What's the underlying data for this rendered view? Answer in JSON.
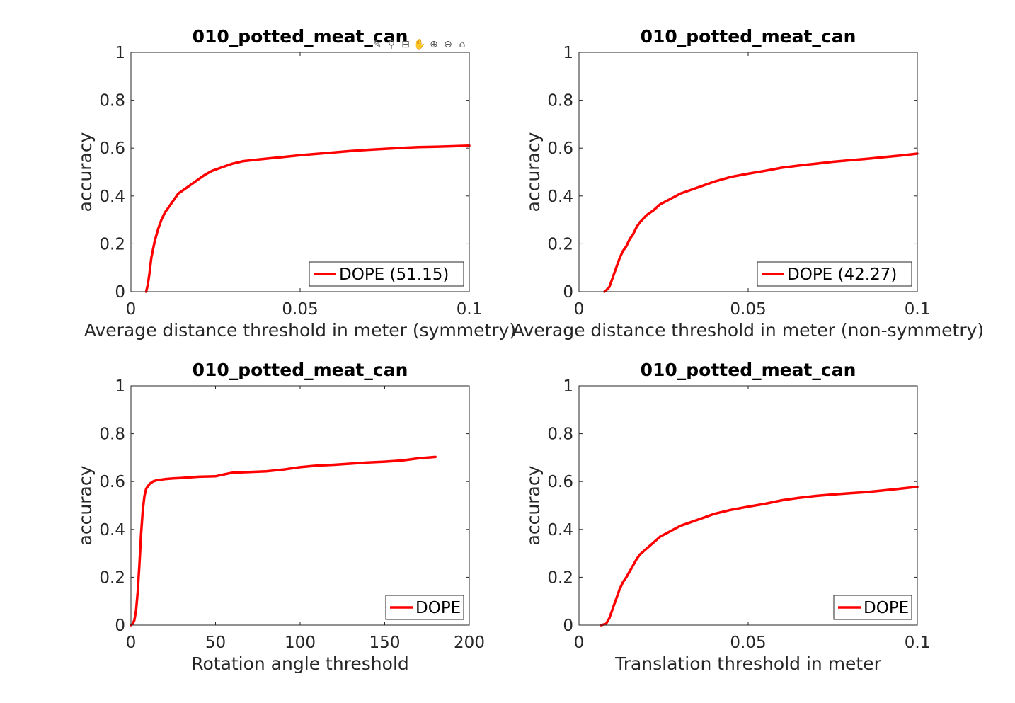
{
  "toolbar": {
    "icons": [
      "brush-icon",
      "datatip-icon",
      "legend-icon",
      "pan-icon",
      "zoom-in-icon",
      "zoom-out-icon",
      "home-icon"
    ],
    "glyphs": [
      "✎",
      "⚲",
      "⊟",
      "✋",
      "⊕",
      "⊖",
      "⌂"
    ]
  },
  "chart_data": [
    {
      "type": "line",
      "title": "010_potted_meat_can",
      "xlabel": "Average distance threshold in meter (symmetry)",
      "ylabel": "accuracy",
      "xlim": [
        0,
        0.1
      ],
      "ylim": [
        0,
        1
      ],
      "xticks": [
        0,
        0.05,
        0.1
      ],
      "xtick_labels": [
        "0",
        "0.05",
        "0.1"
      ],
      "yticks": [
        0,
        0.2,
        0.4,
        0.6,
        0.8,
        1
      ],
      "ytick_labels": [
        "0",
        "0.2",
        "0.4",
        "0.6",
        "0.8",
        "1"
      ],
      "legend_position": "bottom-right",
      "series": [
        {
          "name": "DOPE (51.15)",
          "color": "#ff0000",
          "x": [
            0.0045,
            0.005,
            0.0055,
            0.006,
            0.007,
            0.008,
            0.009,
            0.01,
            0.011,
            0.012,
            0.013,
            0.014,
            0.016,
            0.018,
            0.02,
            0.022,
            0.024,
            0.026,
            0.028,
            0.03,
            0.033,
            0.036,
            0.04,
            0.045,
            0.05,
            0.055,
            0.06,
            0.065,
            0.07,
            0.075,
            0.08,
            0.085,
            0.09,
            0.095,
            0.1
          ],
          "y": [
            0.0,
            0.03,
            0.08,
            0.14,
            0.21,
            0.26,
            0.3,
            0.33,
            0.35,
            0.37,
            0.39,
            0.41,
            0.43,
            0.45,
            0.47,
            0.49,
            0.505,
            0.515,
            0.525,
            0.535,
            0.545,
            0.55,
            0.556,
            0.563,
            0.57,
            0.576,
            0.582,
            0.588,
            0.593,
            0.597,
            0.601,
            0.604,
            0.606,
            0.608,
            0.61
          ]
        }
      ]
    },
    {
      "type": "line",
      "title": "010_potted_meat_can",
      "xlabel": "Average distance threshold in meter (non-symmetry)",
      "ylabel": "accuracy",
      "xlim": [
        0,
        0.1
      ],
      "ylim": [
        0,
        1
      ],
      "xticks": [
        0,
        0.05,
        0.1
      ],
      "xtick_labels": [
        "0",
        "0.05",
        "0.1"
      ],
      "yticks": [
        0,
        0.2,
        0.4,
        0.6,
        0.8,
        1
      ],
      "ytick_labels": [
        "0",
        "0.2",
        "0.4",
        "0.6",
        "0.8",
        "1"
      ],
      "legend_position": "bottom-right",
      "series": [
        {
          "name": "DOPE (42.27)",
          "color": "#ff0000",
          "x": [
            0.0075,
            0.008,
            0.009,
            0.01,
            0.011,
            0.012,
            0.013,
            0.014,
            0.015,
            0.016,
            0.017,
            0.018,
            0.02,
            0.022,
            0.024,
            0.026,
            0.028,
            0.03,
            0.033,
            0.036,
            0.04,
            0.045,
            0.05,
            0.055,
            0.06,
            0.065,
            0.07,
            0.075,
            0.08,
            0.085,
            0.09,
            0.095,
            0.1
          ],
          "y": [
            0.0,
            0.005,
            0.02,
            0.06,
            0.1,
            0.14,
            0.17,
            0.19,
            0.22,
            0.24,
            0.27,
            0.29,
            0.32,
            0.34,
            0.365,
            0.38,
            0.395,
            0.41,
            0.425,
            0.44,
            0.46,
            0.48,
            0.493,
            0.505,
            0.518,
            0.527,
            0.535,
            0.543,
            0.549,
            0.555,
            0.562,
            0.569,
            0.577
          ]
        }
      ]
    },
    {
      "type": "line",
      "title": "010_potted_meat_can",
      "xlabel": "Rotation angle threshold",
      "ylabel": "accuracy",
      "xlim": [
        0,
        200
      ],
      "ylim": [
        0,
        1
      ],
      "xticks": [
        0,
        50,
        100,
        150,
        200
      ],
      "xtick_labels": [
        "0",
        "50",
        "100",
        "150",
        "200"
      ],
      "yticks": [
        0,
        0.2,
        0.4,
        0.6,
        0.8,
        1
      ],
      "ytick_labels": [
        "0",
        "0.2",
        "0.4",
        "0.6",
        "0.8",
        "1"
      ],
      "legend_position": "bottom-right",
      "series": [
        {
          "name": "DOPE",
          "color": "#ff0000",
          "x": [
            0,
            1,
            2,
            3,
            4,
            5,
            6,
            7,
            8,
            9,
            10,
            11,
            13,
            15,
            20,
            25,
            30,
            40,
            50,
            55,
            60,
            70,
            80,
            90,
            100,
            110,
            120,
            130,
            140,
            150,
            160,
            170,
            180
          ],
          "y": [
            0.0,
            0.005,
            0.02,
            0.06,
            0.14,
            0.25,
            0.38,
            0.48,
            0.54,
            0.57,
            0.58,
            0.59,
            0.6,
            0.605,
            0.61,
            0.613,
            0.615,
            0.62,
            0.622,
            0.63,
            0.637,
            0.64,
            0.643,
            0.65,
            0.66,
            0.667,
            0.67,
            0.675,
            0.68,
            0.683,
            0.688,
            0.697,
            0.703
          ]
        }
      ]
    },
    {
      "type": "line",
      "title": "010_potted_meat_can",
      "xlabel": "Translation threshold in meter",
      "ylabel": "accuracy",
      "xlim": [
        0,
        0.1
      ],
      "ylim": [
        0,
        1
      ],
      "xticks": [
        0,
        0.05,
        0.1
      ],
      "xtick_labels": [
        "0",
        "0.05",
        "0.1"
      ],
      "yticks": [
        0,
        0.2,
        0.4,
        0.6,
        0.8,
        1
      ],
      "ytick_labels": [
        "0",
        "0.2",
        "0.4",
        "0.6",
        "0.8",
        "1"
      ],
      "legend_position": "bottom-right",
      "series": [
        {
          "name": "DOPE",
          "color": "#ff0000",
          "x": [
            0.0065,
            0.008,
            0.009,
            0.01,
            0.011,
            0.012,
            0.013,
            0.014,
            0.015,
            0.016,
            0.017,
            0.018,
            0.02,
            0.022,
            0.024,
            0.026,
            0.028,
            0.03,
            0.033,
            0.036,
            0.04,
            0.045,
            0.05,
            0.055,
            0.06,
            0.065,
            0.07,
            0.075,
            0.08,
            0.085,
            0.09,
            0.095,
            0.1
          ],
          "y": [
            0.0,
            0.005,
            0.03,
            0.07,
            0.11,
            0.15,
            0.18,
            0.2,
            0.225,
            0.25,
            0.275,
            0.295,
            0.32,
            0.345,
            0.37,
            0.385,
            0.4,
            0.415,
            0.43,
            0.445,
            0.465,
            0.482,
            0.495,
            0.507,
            0.522,
            0.532,
            0.54,
            0.546,
            0.551,
            0.556,
            0.563,
            0.57,
            0.578
          ]
        }
      ]
    }
  ]
}
